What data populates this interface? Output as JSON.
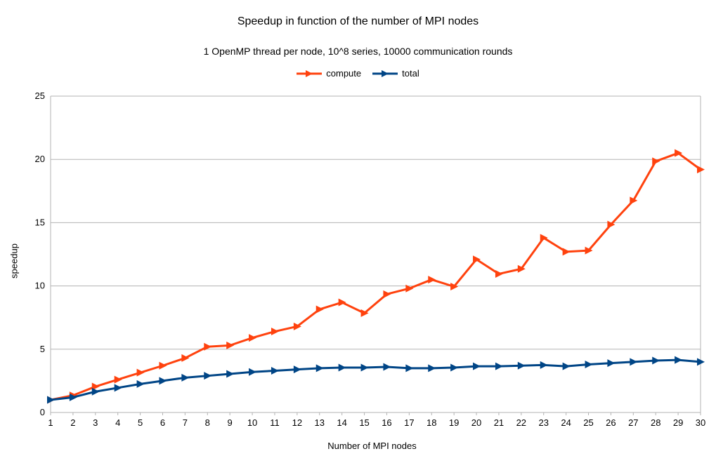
{
  "chart_data": {
    "type": "line",
    "title": "Speedup in function of the number of MPI nodes",
    "subtitle": "1 OpenMP thread per node, 10^8 series, 10000 communication rounds",
    "xlabel": "Number of MPI nodes",
    "ylabel": "speedup",
    "x": [
      1,
      2,
      3,
      4,
      5,
      6,
      7,
      8,
      9,
      10,
      11,
      12,
      13,
      14,
      15,
      16,
      17,
      18,
      19,
      20,
      21,
      22,
      23,
      24,
      25,
      26,
      27,
      28,
      29,
      30
    ],
    "ylim": [
      0,
      25
    ],
    "yticks": [
      0,
      5,
      10,
      15,
      20,
      25
    ],
    "grid": true,
    "legend_position": "top-center",
    "series": [
      {
        "name": "compute",
        "color": "#ff420e",
        "values": [
          1.0,
          1.35,
          2.05,
          2.6,
          3.15,
          3.7,
          4.3,
          5.2,
          5.3,
          5.9,
          6.4,
          6.8,
          8.15,
          8.7,
          7.85,
          9.35,
          9.8,
          10.5,
          9.95,
          12.1,
          10.95,
          11.35,
          13.8,
          12.7,
          12.8,
          14.85,
          16.75,
          19.85,
          20.5,
          19.2
        ]
      },
      {
        "name": "total",
        "color": "#004586",
        "values": [
          1.0,
          1.2,
          1.65,
          1.95,
          2.25,
          2.5,
          2.75,
          2.9,
          3.05,
          3.2,
          3.3,
          3.4,
          3.5,
          3.55,
          3.55,
          3.6,
          3.5,
          3.5,
          3.55,
          3.65,
          3.65,
          3.7,
          3.75,
          3.65,
          3.8,
          3.9,
          4.0,
          4.1,
          4.15,
          4.0
        ]
      }
    ]
  }
}
